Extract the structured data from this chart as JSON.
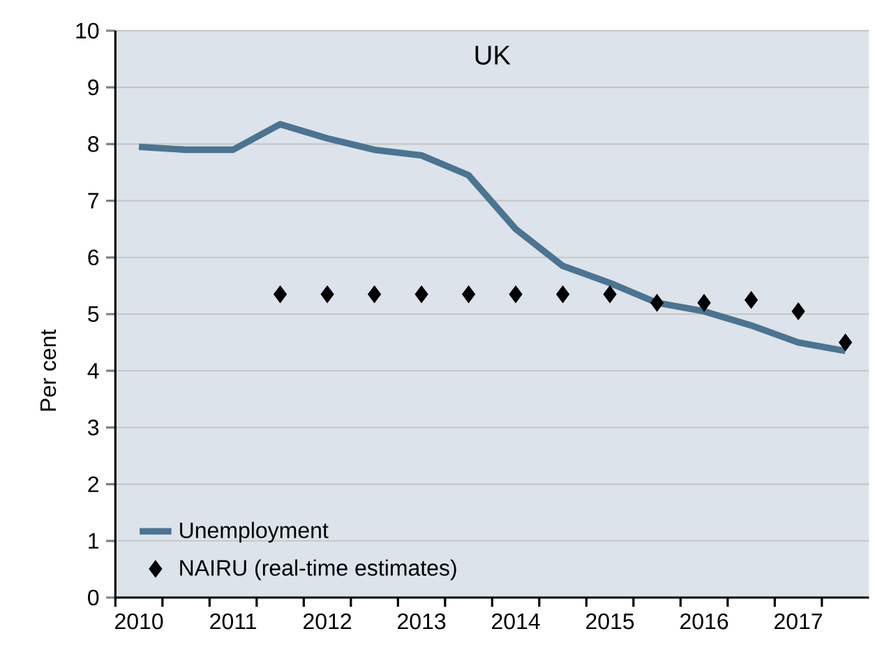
{
  "chart_data": {
    "type": "line",
    "title": "UK",
    "ylabel": "Per cent",
    "xlim": [
      2009.75,
      2017.75
    ],
    "xticks": [
      {
        "value": 2009.75,
        "label": null
      },
      {
        "value": 2010,
        "label": "2010"
      },
      {
        "value": 2010.25,
        "label": null
      },
      {
        "value": 2010.75,
        "label": null
      },
      {
        "value": 2011,
        "label": "2011"
      },
      {
        "value": 2011.25,
        "label": null
      },
      {
        "value": 2011.75,
        "label": null
      },
      {
        "value": 2012,
        "label": "2012"
      },
      {
        "value": 2012.25,
        "label": null
      },
      {
        "value": 2012.75,
        "label": null
      },
      {
        "value": 2013,
        "label": "2013"
      },
      {
        "value": 2013.25,
        "label": null
      },
      {
        "value": 2013.75,
        "label": null
      },
      {
        "value": 2014,
        "label": "2014"
      },
      {
        "value": 2014.25,
        "label": null
      },
      {
        "value": 2014.75,
        "label": null
      },
      {
        "value": 2015,
        "label": "2015"
      },
      {
        "value": 2015.25,
        "label": null
      },
      {
        "value": 2015.75,
        "label": null
      },
      {
        "value": 2016,
        "label": "2016"
      },
      {
        "value": 2016.25,
        "label": null
      },
      {
        "value": 2016.75,
        "label": null
      },
      {
        "value": 2017,
        "label": "2017"
      },
      {
        "value": 2017.25,
        "label": null
      }
    ],
    "ylim": [
      0,
      10
    ],
    "yticks": [
      0,
      1,
      2,
      3,
      4,
      5,
      6,
      7,
      8,
      9,
      10
    ],
    "grid": "y",
    "legend": "bottom left",
    "series": [
      {
        "name": "Unemployment",
        "color": "#4a7491",
        "x": [
          2010,
          2010.5,
          2011,
          2011.5,
          2012,
          2012.5,
          2013,
          2013.5,
          2014,
          2014.5,
          2015,
          2015.5,
          2016,
          2016.5,
          2017,
          2017.5
        ],
        "values": [
          7.95,
          7.9,
          7.9,
          8.35,
          8.1,
          7.9,
          7.8,
          7.45,
          6.5,
          5.85,
          5.55,
          5.2,
          5.05,
          4.8,
          4.5,
          4.35
        ]
      },
      {
        "name": "NAIRU (real-time estimates)",
        "type": "scatter",
        "marker": "diamond",
        "color": "#000000",
        "x": [
          2011.5,
          2012,
          2012.5,
          2013,
          2013.5,
          2014,
          2014.5,
          2015,
          2015.5,
          2016,
          2016.5,
          2017,
          2017.5
        ],
        "values": [
          5.35,
          5.35,
          5.35,
          5.35,
          5.35,
          5.35,
          5.35,
          5.35,
          5.2,
          5.2,
          5.25,
          5.05,
          4.5
        ]
      }
    ]
  }
}
